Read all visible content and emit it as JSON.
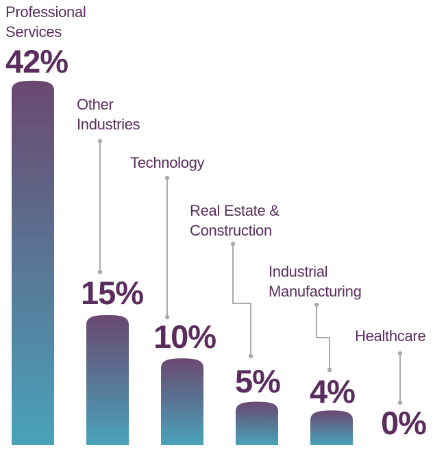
{
  "chart_data": {
    "type": "bar",
    "categories": [
      "Professional Services",
      "Other Industries",
      "Technology",
      "Real Estate & Construction",
      "Industrial Manufacturing",
      "Healthcare"
    ],
    "category_lines": [
      [
        "Professional",
        "Services"
      ],
      [
        "Other",
        "Industries"
      ],
      [
        "Technology"
      ],
      [
        "Real Estate &",
        "Construction"
      ],
      [
        "Industrial",
        "Manufacturing"
      ],
      [
        "Healthcare"
      ]
    ],
    "values": [
      42,
      15,
      10,
      5,
      4,
      0
    ],
    "data_labels": [
      "42%",
      "15%",
      "10%",
      "5%",
      "4%",
      "0%"
    ],
    "unit": "%",
    "title": "",
    "xlabel": "",
    "ylabel": "",
    "grid": false,
    "legend": "none",
    "colors": {
      "text": "#5a2d5e",
      "bar_top": "#6a4870",
      "bar_bottom": "#49a3ba",
      "leader": "#aaaaaa"
    }
  }
}
